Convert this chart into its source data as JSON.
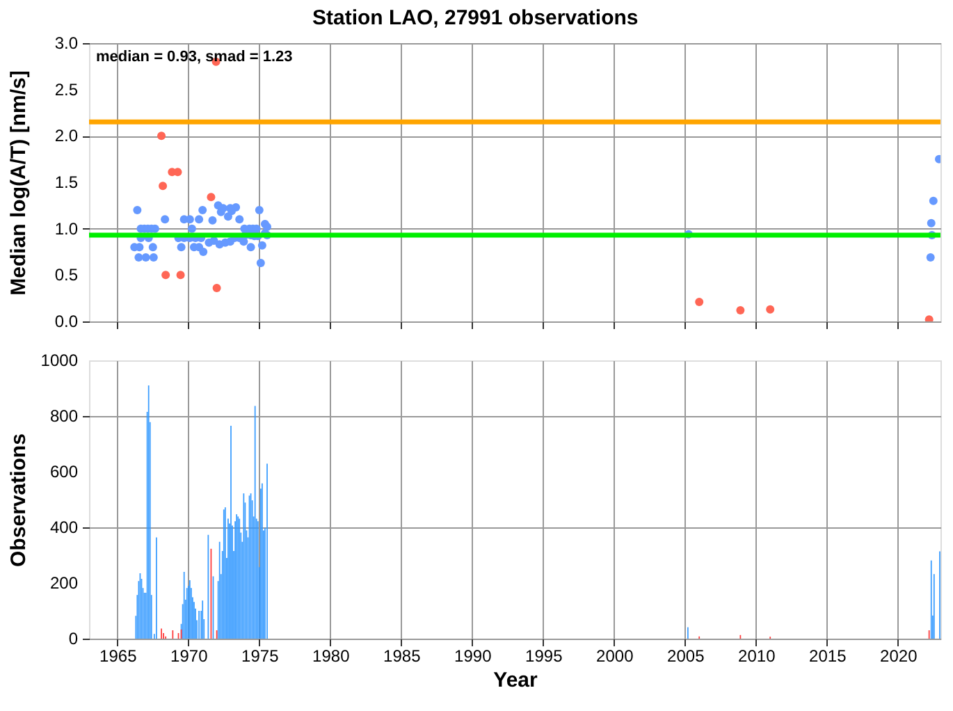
{
  "chart_data": [
    {
      "type": "scatter",
      "title": "Station LAO, 27991 observations",
      "ylabel": "Median log(A/T) [nm/s]",
      "annotations": [
        "median = 0.93, smad = 1.23"
      ],
      "xlim": [
        1963,
        2023
      ],
      "xticks": [
        1965,
        1970,
        1975,
        1980,
        1985,
        1990,
        1995,
        2000,
        2005,
        2010,
        2015,
        2020
      ],
      "ylim": [
        0,
        3
      ],
      "yticks": [
        {
          "value": 0,
          "label": "0.0"
        },
        0.5,
        {
          "value": 1,
          "label": "1.0"
        },
        1.5,
        {
          "value": 2,
          "label": "2.0"
        },
        2.5,
        {
          "value": 3,
          "label": "3.0"
        }
      ],
      "grid": true,
      "tick_labels": "y",
      "marker": "circle",
      "ref_lines": [
        {
          "axis": "y",
          "value": 0.93,
          "color": "#00ee00"
        },
        {
          "axis": "y",
          "value": 2.15,
          "color": "#ffa500"
        }
      ],
      "series": [
        {
          "color": "#6699ff",
          "x": [
            1966.4,
            1966.65,
            1966.9,
            1967.15,
            1967.4,
            1967.65,
            1966.65,
            1967.2,
            1966.2,
            1966.55,
            1967.5,
            1966.5,
            1967.0,
            1967.55,
            1968.35,
            1969.3,
            1969.7,
            1970.1,
            1970.5,
            1970.9,
            1969.7,
            1970.1,
            1970.75,
            1970.25,
            1969.5,
            1970.4,
            1970.75,
            1971.0,
            1971.05,
            1971.7,
            1971.45,
            1971.8,
            1972.2,
            1972.6,
            1972.95,
            1973.25,
            1973.6,
            1973.9,
            1972.1,
            1972.45,
            1972.95,
            1973.35,
            1972.3,
            1972.8,
            1973.05,
            1973.6,
            1973.95,
            1974.3,
            1974.55,
            1974.8,
            1975.0,
            1974.0,
            1974.4,
            1974.65,
            1974.9,
            1974.4,
            1975.2,
            1975.1,
            1975.4,
            1975.55,
            1975.4,
            1975.55,
            2005.25,
            2022.9,
            2022.5,
            2022.35,
            2022.4,
            2022.3
          ],
          "values": [
            1.2,
            1.0,
            1.0,
            1.0,
            1.0,
            1.0,
            0.9,
            0.9,
            0.8,
            0.8,
            0.8,
            0.69,
            0.69,
            0.69,
            1.1,
            0.9,
            0.9,
            0.9,
            0.9,
            0.9,
            1.1,
            1.1,
            1.1,
            1.0,
            0.8,
            0.8,
            0.8,
            1.2,
            0.75,
            1.09,
            0.85,
            0.87,
            0.83,
            0.85,
            0.86,
            0.9,
            0.9,
            0.86,
            1.25,
            1.22,
            1.22,
            1.23,
            1.18,
            1.13,
            1.19,
            1.1,
            1.0,
            1.0,
            1.0,
            1.0,
            1.2,
            0.93,
            0.93,
            0.92,
            0.92,
            0.8,
            0.82,
            0.63,
            1.05,
            1.02,
            0.95,
            0.93,
            0.94,
            1.75,
            1.3,
            1.06,
            0.93,
            0.69
          ]
        },
        {
          "color": "#ff6655",
          "x": [
            1971.95,
            1968.1,
            1968.2,
            1968.85,
            1969.25,
            1971.6,
            1968.4,
            1969.45,
            1972.0,
            2006.0,
            2008.9,
            2011.0,
            2022.2
          ],
          "values": [
            2.8,
            2.0,
            1.46,
            1.61,
            1.61,
            1.34,
            0.5,
            0.5,
            0.36,
            0.21,
            0.12,
            0.13,
            0.02
          ]
        }
      ]
    },
    {
      "type": "bar",
      "xlabel": "Year",
      "ylabel": "Observations",
      "xlim": [
        1963,
        2023
      ],
      "xticks": [
        1965,
        1970,
        1975,
        1980,
        1985,
        1990,
        1995,
        2000,
        2005,
        2010,
        2015,
        2020
      ],
      "ylim": [
        0,
        1000
      ],
      "yticks": [
        0,
        200,
        400,
        600,
        800,
        1000
      ],
      "grid": true,
      "series": [
        {
          "color": "#3399ff",
          "x": [
            1966.3,
            1966.4,
            1966.5,
            1966.6,
            1966.7,
            1966.8,
            1966.9,
            1967.0,
            1967.1,
            1967.2,
            1967.3,
            1967.4,
            1967.6,
            1967.75,
            1969.5,
            1969.6,
            1969.7,
            1969.8,
            1969.9,
            1970.0,
            1970.1,
            1970.2,
            1970.3,
            1970.4,
            1970.5,
            1970.6,
            1970.75,
            1970.9,
            1971.0,
            1971.1,
            1971.4,
            1971.75,
            1972.1,
            1972.2,
            1972.3,
            1972.4,
            1972.5,
            1972.6,
            1972.7,
            1972.8,
            1972.9,
            1973.0,
            1973.1,
            1973.2,
            1973.3,
            1973.4,
            1973.5,
            1973.6,
            1973.7,
            1973.8,
            1973.9,
            1974.0,
            1974.1,
            1974.2,
            1974.3,
            1974.4,
            1974.5,
            1974.6,
            1974.7,
            1974.8,
            1974.9,
            1975.0,
            1975.1,
            1975.2,
            1975.3,
            1975.4,
            1975.55,
            2005.2,
            2022.35,
            2022.45,
            2022.55,
            2022.95
          ],
          "values": [
            82,
            157,
            207,
            235,
            215,
            182,
            165,
            165,
            815,
            910,
            778,
            157,
            17,
            364,
            53,
            124,
            240,
            140,
            182,
            190,
            210,
            182,
            149,
            132,
            108,
            66,
            100,
            100,
            137,
            70,
            373,
            224,
            207,
            348,
            232,
            315,
            464,
            472,
            290,
            431,
            414,
            765,
            406,
            315,
            422,
            447,
            439,
            431,
            381,
            348,
            522,
            489,
            389,
            364,
            514,
            522,
            497,
            439,
            836,
            431,
            422,
            257,
            539,
            558,
            389,
            398,
            629,
            41,
            281,
            83,
            232,
            314
          ]
        },
        {
          "color": "#ff3333",
          "x": [
            1968.1,
            1968.25,
            1968.4,
            1968.9,
            1969.3,
            1969.5,
            1971.6,
            1972.0,
            2006.0,
            2008.9,
            2011.0,
            2022.2
          ],
          "values": [
            36,
            20,
            8,
            30,
            20,
            33,
            323,
            30,
            8,
            13,
            7,
            30
          ]
        }
      ]
    }
  ]
}
